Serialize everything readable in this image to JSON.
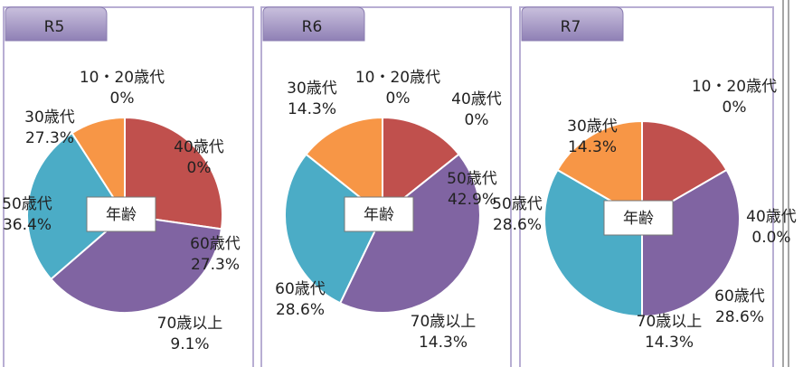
{
  "chart_data": [
    {
      "type": "pie",
      "title": "R5",
      "center_label": "年齢",
      "categories": [
        "10・20歳代",
        "30歳代",
        "40歳代",
        "50歳代",
        "60歳代",
        "70歳以上"
      ],
      "values": [
        0,
        27.3,
        0,
        36.4,
        27.3,
        9.1
      ],
      "value_labels": [
        "0%",
        "27.3%",
        "0%",
        "36.4%",
        "27.3%",
        "9.1%"
      ],
      "colors": [
        "#4f81bd",
        "#c0504d",
        "#9bbb59",
        "#8064a2",
        "#4bacc6",
        "#f79646"
      ]
    },
    {
      "type": "pie",
      "title": "R6",
      "center_label": "年齢",
      "categories": [
        "10・20歳代",
        "30歳代",
        "40歳代",
        "50歳代",
        "60歳代",
        "70歳以上"
      ],
      "values": [
        0,
        14.3,
        0,
        42.9,
        28.6,
        14.3
      ],
      "value_labels": [
        "0%",
        "14.3%",
        "0%",
        "42.9%",
        "28.6%",
        "14.3%"
      ],
      "colors": [
        "#4f81bd",
        "#c0504d",
        "#9bbb59",
        "#8064a2",
        "#4bacc6",
        "#f79646"
      ]
    },
    {
      "type": "pie",
      "title": "R7",
      "center_label": "年齢",
      "categories": [
        "10・20歳代",
        "30歳代",
        "40歳代",
        "50歳代",
        "60歳代",
        "70歳以上"
      ],
      "values": [
        0,
        14.3,
        0.0,
        28.6,
        28.6,
        14.3
      ],
      "value_labels": [
        "0%",
        "14.3%",
        "0.0%",
        "28.6%",
        "28.6%",
        "14.3%"
      ],
      "colors": [
        "#4f81bd",
        "#c0504d",
        "#9bbb59",
        "#8064a2",
        "#4bacc6",
        "#f79646"
      ]
    }
  ]
}
